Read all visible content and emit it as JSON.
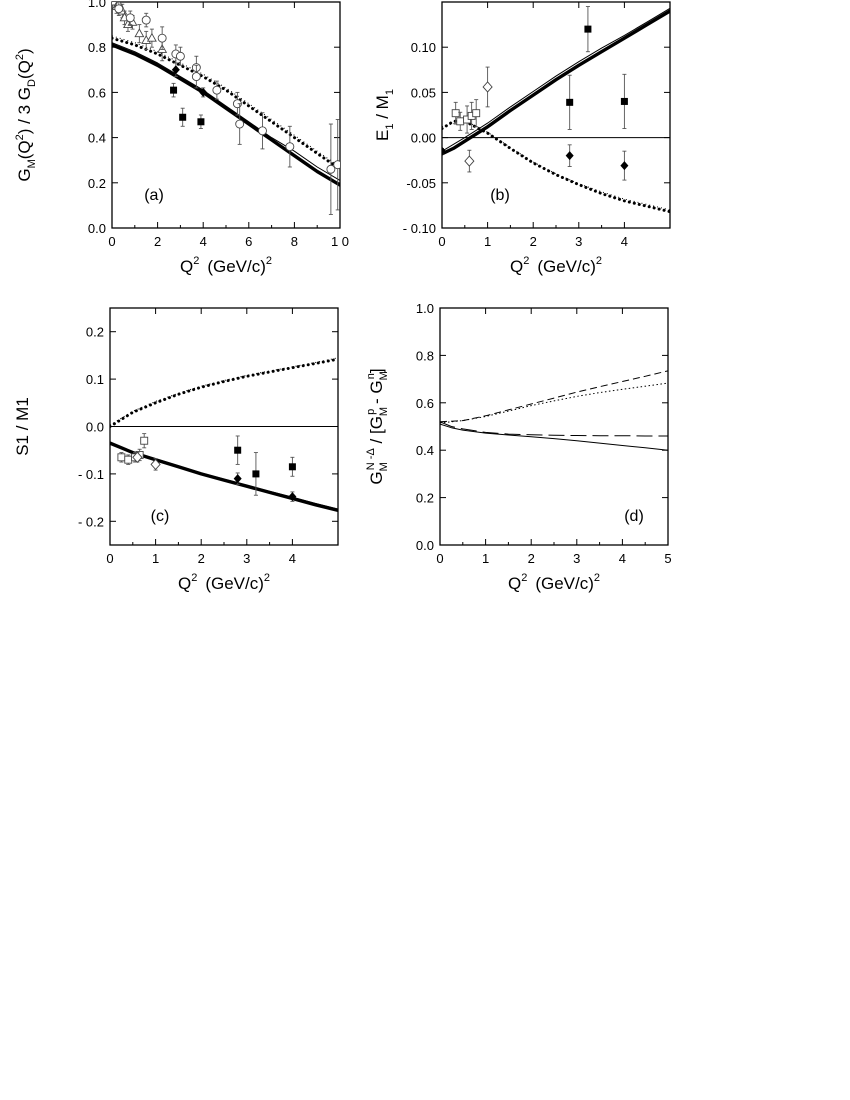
{
  "chart_data": [
    {
      "id": "a",
      "type": "scatter",
      "panel_label": "(a)",
      "xlabel": {
        "main": "Q",
        "sup": "2",
        "unit": "(GeV/c)",
        "unit_sup": "2"
      },
      "ylabel": "G_M(Q^2) / 3 G_D(Q^2)",
      "xlim": [
        0,
        10
      ],
      "ylim": [
        0,
        1.0
      ],
      "xticks": [
        0,
        2,
        4,
        6,
        8,
        10
      ],
      "xtick_labels": [
        "0",
        "2",
        "4",
        "6",
        "8",
        "1 0"
      ],
      "yticks": [
        0,
        0.2,
        0.4,
        0.6,
        0.8,
        1.0
      ],
      "ytick_labels": [
        "0.0",
        "0.2",
        "0.4",
        "0.6",
        "0.8",
        "1.0"
      ],
      "zero_line": false,
      "curves": [
        {
          "style": "thick",
          "x": [
            0,
            0.5,
            1,
            2,
            3,
            4,
            5,
            6,
            7,
            8,
            9,
            10
          ],
          "y": [
            0.81,
            0.79,
            0.77,
            0.72,
            0.66,
            0.6,
            0.53,
            0.46,
            0.39,
            0.32,
            0.25,
            0.19
          ]
        },
        {
          "style": "thin",
          "x": [
            0,
            0.5,
            1,
            2,
            3,
            4,
            5,
            6,
            7,
            8,
            9,
            10
          ],
          "y": [
            0.82,
            0.8,
            0.78,
            0.73,
            0.67,
            0.61,
            0.54,
            0.47,
            0.4,
            0.34,
            0.27,
            0.21
          ]
        },
        {
          "style": "dotted",
          "x": [
            0,
            1,
            2,
            3,
            4,
            5,
            6,
            7,
            8,
            9,
            10
          ],
          "y": [
            0.84,
            0.81,
            0.77,
            0.72,
            0.67,
            0.61,
            0.54,
            0.47,
            0.4,
            0.33,
            0.26
          ]
        },
        {
          "style": "dotted-thin",
          "x": [
            0,
            1,
            2,
            3,
            4,
            5,
            6,
            7,
            8,
            9,
            10
          ],
          "y": [
            0.85,
            0.82,
            0.78,
            0.73,
            0.68,
            0.62,
            0.55,
            0.48,
            0.41,
            0.34,
            0.27
          ]
        }
      ],
      "points": [
        {
          "m": "tri",
          "x": 0.1,
          "y": 1.0,
          "e": 0.03
        },
        {
          "m": "tri",
          "x": 0.2,
          "y": 0.98,
          "e": 0.03
        },
        {
          "m": "tri",
          "x": 0.3,
          "y": 0.99,
          "e": 0.03
        },
        {
          "m": "tri",
          "x": 0.45,
          "y": 0.96,
          "e": 0.03
        },
        {
          "m": "tri",
          "x": 0.55,
          "y": 0.93,
          "e": 0.03
        },
        {
          "m": "tri",
          "x": 0.7,
          "y": 0.9,
          "e": 0.03
        },
        {
          "m": "tri",
          "x": 0.9,
          "y": 0.91,
          "e": 0.03
        },
        {
          "m": "tri",
          "x": 1.2,
          "y": 0.86,
          "e": 0.04
        },
        {
          "m": "tri",
          "x": 1.5,
          "y": 0.83,
          "e": 0.04
        },
        {
          "m": "tri",
          "x": 1.75,
          "y": 0.84,
          "e": 0.04
        },
        {
          "m": "tri",
          "x": 2.2,
          "y": 0.79,
          "e": 0.05
        },
        {
          "m": "ocirc",
          "x": 0.3,
          "y": 0.97,
          "e": 0.03
        },
        {
          "m": "ocirc",
          "x": 0.8,
          "y": 0.93,
          "e": 0.03
        },
        {
          "m": "ocirc",
          "x": 1.5,
          "y": 0.92,
          "e": 0.03
        },
        {
          "m": "ocirc",
          "x": 2.2,
          "y": 0.84,
          "e": 0.05
        },
        {
          "m": "ocirc",
          "x": 2.8,
          "y": 0.77,
          "e": 0.04
        },
        {
          "m": "ocirc",
          "x": 3.0,
          "y": 0.76,
          "e": 0.04
        },
        {
          "m": "ocirc",
          "x": 3.7,
          "y": 0.71,
          "e": 0.05
        },
        {
          "m": "ocirc",
          "x": 3.7,
          "y": 0.67,
          "e": 0.05
        },
        {
          "m": "ocirc",
          "x": 4.6,
          "y": 0.61,
          "e": 0.04
        },
        {
          "m": "ocirc",
          "x": 5.5,
          "y": 0.55,
          "e": 0.05
        },
        {
          "m": "ocirc",
          "x": 5.6,
          "y": 0.46,
          "e": 0.09
        },
        {
          "m": "ocirc",
          "x": 6.6,
          "y": 0.43,
          "e": 0.08
        },
        {
          "m": "ocirc",
          "x": 7.8,
          "y": 0.36,
          "e": 0.09
        },
        {
          "m": "ocirc",
          "x": 9.6,
          "y": 0.26,
          "e": 0.2
        },
        {
          "m": "ocirc",
          "x": 9.9,
          "y": 0.28,
          "e": 0.2
        },
        {
          "m": "sq",
          "x": 2.7,
          "y": 0.61,
          "e": 0.03
        },
        {
          "m": "sq",
          "x": 3.1,
          "y": 0.49,
          "e": 0.04
        },
        {
          "m": "sq",
          "x": 3.9,
          "y": 0.47,
          "e": 0.03
        },
        {
          "m": "dia",
          "x": 2.8,
          "y": 0.7,
          "e": 0.03
        },
        {
          "m": "dia",
          "x": 4.0,
          "y": 0.6,
          "e": 0.02
        }
      ]
    },
    {
      "id": "b",
      "type": "scatter",
      "panel_label": "(b)",
      "xlabel": {
        "main": "Q",
        "sup": "2",
        "unit": "(GeV/c)",
        "unit_sup": "2"
      },
      "ylabel": "E_1 / M_1",
      "xlim": [
        0,
        5
      ],
      "ylim": [
        -0.1,
        0.15
      ],
      "xticks": [
        0,
        1,
        2,
        3,
        4
      ],
      "xtick_labels": [
        "0",
        "1",
        "2",
        "3",
        "4"
      ],
      "yticks": [
        -0.1,
        -0.05,
        0,
        0.05,
        0.1
      ],
      "ytick_labels": [
        "- 0.10",
        "-0.05",
        "0.00",
        "0.05",
        "0.10"
      ],
      "zero_line": true,
      "curves": [
        {
          "style": "thick",
          "x": [
            0,
            0.25,
            0.5,
            1,
            1.5,
            2,
            2.5,
            3,
            3.5,
            4,
            4.5,
            5
          ],
          "y": [
            -0.018,
            -0.012,
            -0.004,
            0.012,
            0.03,
            0.047,
            0.064,
            0.08,
            0.095,
            0.11,
            0.125,
            0.14
          ]
        },
        {
          "style": "thin",
          "x": [
            0,
            0.5,
            1,
            1.5,
            2,
            2.5,
            3,
            3.5,
            4,
            4.5,
            5
          ],
          "y": [
            -0.015,
            0.0,
            0.016,
            0.034,
            0.051,
            0.068,
            0.084,
            0.099,
            0.113,
            0.128,
            0.143
          ]
        },
        {
          "style": "dotted",
          "x": [
            0,
            0.25,
            0.5,
            1,
            1.5,
            2,
            2.5,
            3,
            3.5,
            4,
            4.5,
            5
          ],
          "y": [
            0.01,
            0.018,
            0.018,
            0.005,
            -0.012,
            -0.028,
            -0.041,
            -0.052,
            -0.062,
            -0.07,
            -0.076,
            -0.082
          ]
        },
        {
          "style": "dotted-thin",
          "x": [
            0,
            0.5,
            1,
            1.5,
            2,
            2.5,
            3,
            3.5,
            4,
            4.5,
            5
          ],
          "y": [
            0.012,
            0.019,
            0.006,
            -0.011,
            -0.027,
            -0.04,
            -0.051,
            -0.06,
            -0.068,
            -0.074,
            -0.08
          ]
        }
      ],
      "points": [
        {
          "m": "osq",
          "x": 0.3,
          "y": 0.027,
          "e": 0.012
        },
        {
          "m": "osq",
          "x": 0.4,
          "y": 0.018,
          "e": 0.01
        },
        {
          "m": "osq",
          "x": 0.55,
          "y": 0.02,
          "e": 0.015
        },
        {
          "m": "osq",
          "x": 0.65,
          "y": 0.024,
          "e": 0.015
        },
        {
          "m": "osq",
          "x": 0.75,
          "y": 0.027,
          "e": 0.015
        },
        {
          "m": "odia",
          "x": 0.6,
          "y": -0.026,
          "e": 0.012
        },
        {
          "m": "odia",
          "x": 1.0,
          "y": 0.056,
          "e": 0.022
        },
        {
          "m": "dia",
          "x": 0.0,
          "y": -0.015,
          "e": 0.003
        },
        {
          "m": "sq",
          "x": 2.8,
          "y": 0.039,
          "e": 0.03
        },
        {
          "m": "sq",
          "x": 3.2,
          "y": 0.12,
          "e": 0.025
        },
        {
          "m": "sq",
          "x": 4.0,
          "y": 0.04,
          "e": 0.03
        },
        {
          "m": "dia",
          "x": 2.8,
          "y": -0.02,
          "e": 0.012
        },
        {
          "m": "dia",
          "x": 4.0,
          "y": -0.031,
          "e": 0.016
        }
      ]
    },
    {
      "id": "c",
      "type": "scatter",
      "panel_label": "(c)",
      "xlabel": {
        "main": "Q",
        "sup": "2",
        "unit": "(GeV/c)",
        "unit_sup": "2"
      },
      "ylabel": "S1 / M1",
      "xlim": [
        0,
        5
      ],
      "ylim": [
        -0.25,
        0.25
      ],
      "xticks": [
        0,
        1,
        2,
        3,
        4
      ],
      "xtick_labels": [
        "0",
        "1",
        "2",
        "3",
        "4"
      ],
      "yticks": [
        -0.2,
        -0.1,
        0,
        0.1,
        0.2
      ],
      "ytick_labels": [
        "- 0.2",
        "- 0.1",
        "0.0",
        "0.1",
        "0.2"
      ],
      "zero_line": true,
      "curves": [
        {
          "style": "thick",
          "x": [
            0,
            0.25,
            0.5,
            1,
            1.5,
            2,
            2.5,
            3,
            3.5,
            4,
            4.5,
            5
          ],
          "y": [
            -0.035,
            -0.045,
            -0.055,
            -0.07,
            -0.085,
            -0.1,
            -0.113,
            -0.126,
            -0.139,
            -0.152,
            -0.165,
            -0.177
          ]
        },
        {
          "style": "thin",
          "x": [
            0,
            0.5,
            1,
            1.5,
            2,
            2.5,
            3,
            3.5,
            4,
            4.5,
            5
          ],
          "y": [
            -0.036,
            -0.054,
            -0.068,
            -0.083,
            -0.098,
            -0.111,
            -0.124,
            -0.137,
            -0.149,
            -0.162,
            -0.174
          ]
        },
        {
          "style": "dotted",
          "x": [
            0,
            0.25,
            0.5,
            1,
            1.5,
            2,
            2.5,
            3,
            3.5,
            4,
            4.5,
            5
          ],
          "y": [
            0.0,
            0.015,
            0.03,
            0.05,
            0.068,
            0.083,
            0.095,
            0.106,
            0.115,
            0.124,
            0.133,
            0.142
          ]
        },
        {
          "style": "dotted-thin",
          "x": [
            0,
            0.5,
            1,
            1.5,
            2,
            2.5,
            3,
            3.5,
            4,
            4.5,
            5
          ],
          "y": [
            0.003,
            0.032,
            0.053,
            0.07,
            0.085,
            0.097,
            0.108,
            0.117,
            0.126,
            0.135,
            0.145
          ]
        }
      ],
      "points": [
        {
          "m": "osq",
          "x": 0.25,
          "y": -0.065,
          "e": 0.01
        },
        {
          "m": "osq",
          "x": 0.4,
          "y": -0.07,
          "e": 0.01
        },
        {
          "m": "osq",
          "x": 0.55,
          "y": -0.065,
          "e": 0.01
        },
        {
          "m": "osq",
          "x": 0.65,
          "y": -0.06,
          "e": 0.012
        },
        {
          "m": "osq",
          "x": 0.75,
          "y": -0.03,
          "e": 0.015
        },
        {
          "m": "odia",
          "x": 0.6,
          "y": -0.065,
          "e": 0.01
        },
        {
          "m": "odia",
          "x": 1.0,
          "y": -0.08,
          "e": 0.012
        },
        {
          "m": "sq",
          "x": 2.8,
          "y": -0.05,
          "e": 0.03
        },
        {
          "m": "sq",
          "x": 3.2,
          "y": -0.1,
          "e": 0.045
        },
        {
          "m": "sq",
          "x": 4.0,
          "y": -0.085,
          "e": 0.02
        },
        {
          "m": "dia",
          "x": 2.8,
          "y": -0.11,
          "e": 0.012
        },
        {
          "m": "dia",
          "x": 4.0,
          "y": -0.148,
          "e": 0.01
        }
      ]
    },
    {
      "id": "d",
      "type": "line",
      "panel_label": "(d)",
      "xlabel": {
        "main": "Q",
        "sup": "2",
        "unit": "(GeV/c)",
        "unit_sup": "2"
      },
      "ylabel": "G_M^{N-Δ} / [G_M^p - G_M^n]",
      "xlim": [
        0,
        5
      ],
      "ylim": [
        0,
        1.0
      ],
      "xticks": [
        0,
        1,
        2,
        3,
        4,
        5
      ],
      "xtick_labels": [
        "0",
        "1",
        "2",
        "3",
        "4",
        "5"
      ],
      "yticks": [
        0,
        0.2,
        0.4,
        0.6,
        0.8,
        1.0
      ],
      "ytick_labels": [
        "0.0",
        "0.2",
        "0.4",
        "0.6",
        "0.8",
        "1.0"
      ],
      "zero_line": false,
      "curves": [
        {
          "style": "solid-thin",
          "x": [
            0,
            0.25,
            0.5,
            1,
            1.5,
            2,
            2.5,
            3,
            3.5,
            4,
            4.5,
            5
          ],
          "y": [
            0.51,
            0.495,
            0.485,
            0.472,
            0.464,
            0.457,
            0.449,
            0.44,
            0.43,
            0.42,
            0.41,
            0.4
          ]
        },
        {
          "style": "long-dash",
          "x": [
            0,
            0.25,
            0.5,
            1,
            1.5,
            2,
            2.5,
            3,
            3.5,
            4,
            4.5,
            5
          ],
          "y": [
            0.52,
            0.5,
            0.49,
            0.475,
            0.468,
            0.465,
            0.463,
            0.462,
            0.461,
            0.461,
            0.46,
            0.46
          ]
        },
        {
          "style": "dash",
          "x": [
            0,
            0.5,
            1,
            1.5,
            2,
            2.5,
            3,
            3.5,
            4,
            4.5,
            5
          ],
          "y": [
            0.52,
            0.525,
            0.545,
            0.57,
            0.595,
            0.62,
            0.645,
            0.668,
            0.69,
            0.712,
            0.735
          ]
        },
        {
          "style": "dot",
          "x": [
            0,
            0.5,
            1,
            1.5,
            2,
            2.5,
            3,
            3.5,
            4,
            4.5,
            5
          ],
          "y": [
            0.515,
            0.525,
            0.542,
            0.565,
            0.588,
            0.608,
            0.627,
            0.643,
            0.657,
            0.67,
            0.683
          ]
        }
      ],
      "points": []
    }
  ]
}
